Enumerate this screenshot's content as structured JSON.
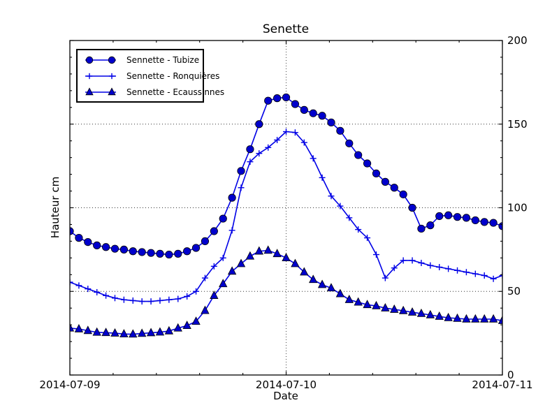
{
  "title": "Senette",
  "axes": {
    "x": {
      "label": "Date",
      "tick_labels": [
        "2014-07-09",
        "2014-07-10",
        "2014-07-11"
      ],
      "major_hours": [
        0,
        24,
        48
      ],
      "minor_interval_hours": 4.8,
      "gridline_hours": [
        24
      ]
    },
    "y": {
      "label": "Hauteur cm",
      "tick_labels": [
        "0",
        "50",
        "100",
        "150",
        "200"
      ],
      "tick_values": [
        0,
        50,
        100,
        150,
        200
      ],
      "minor_step": 10,
      "gridline_values": [
        50,
        100,
        150
      ],
      "range": [
        0,
        200
      ]
    }
  },
  "colors": {
    "line": "#0000e6",
    "marker_fill": "#0000cc",
    "marker_edge": "#000000",
    "grid": "#333333",
    "axis": "#000000",
    "background": "#ffffff"
  },
  "chart_data": {
    "type": "line",
    "title": "Senette",
    "xlabel": "Date",
    "ylabel": "Hauteur cm",
    "ylim": [
      0,
      200
    ],
    "x_start": "2014-07-09 00:00",
    "x_end": "2014-07-11 00:00",
    "x_step_hours": 1,
    "grid": true,
    "legend_position": "upper left",
    "series": [
      {
        "name": "Sennette - Tubize",
        "marker": "circle",
        "values": [
          86,
          82,
          79.5,
          77.5,
          76.5,
          75.5,
          75,
          74,
          73.5,
          73,
          72.5,
          72,
          72.5,
          74,
          76,
          80,
          86,
          93.5,
          106,
          122,
          135,
          150,
          164,
          165.5,
          166,
          162,
          158.5,
          156.5,
          155,
          151,
          146,
          138.5,
          131.5,
          126.5,
          120.5,
          115.5,
          112,
          108,
          100,
          87.5,
          89.5,
          95,
          95.5,
          94.5,
          94,
          92.5,
          91.5,
          91,
          89
        ]
      },
      {
        "name": "Sennette - Ronquières",
        "marker": "plus",
        "values": [
          55.5,
          53.5,
          51.5,
          49.5,
          47.5,
          46,
          45,
          44.5,
          44,
          44,
          44.5,
          45,
          45.5,
          47,
          50,
          58,
          65,
          70,
          86.5,
          112,
          127.5,
          132.5,
          136,
          140.5,
          145.5,
          145,
          139,
          129.5,
          118,
          107,
          101,
          94,
          87,
          82,
          72,
          58,
          64,
          68.5,
          68.5,
          67,
          65.5,
          64.5,
          63.5,
          62.5,
          61.5,
          60.5,
          59.5,
          57.5,
          59.5
        ]
      },
      {
        "name": "Sennette - Ecaussinnes",
        "marker": "triangle",
        "values": [
          28,
          27.5,
          26.5,
          25.5,
          25.3,
          25,
          24.5,
          24.4,
          24.8,
          25.2,
          25.6,
          26.3,
          28,
          29.5,
          32,
          38.5,
          47.5,
          54.5,
          62,
          66.5,
          71,
          74,
          74.5,
          72.5,
          70,
          66.5,
          61.5,
          57,
          54,
          52,
          48.5,
          45,
          43.5,
          42,
          41.3,
          40,
          39.2,
          38.4,
          37.5,
          36.7,
          35.9,
          35,
          34.2,
          33.8,
          33.4,
          33.4,
          33.4,
          33.4,
          32.5
        ]
      }
    ]
  }
}
